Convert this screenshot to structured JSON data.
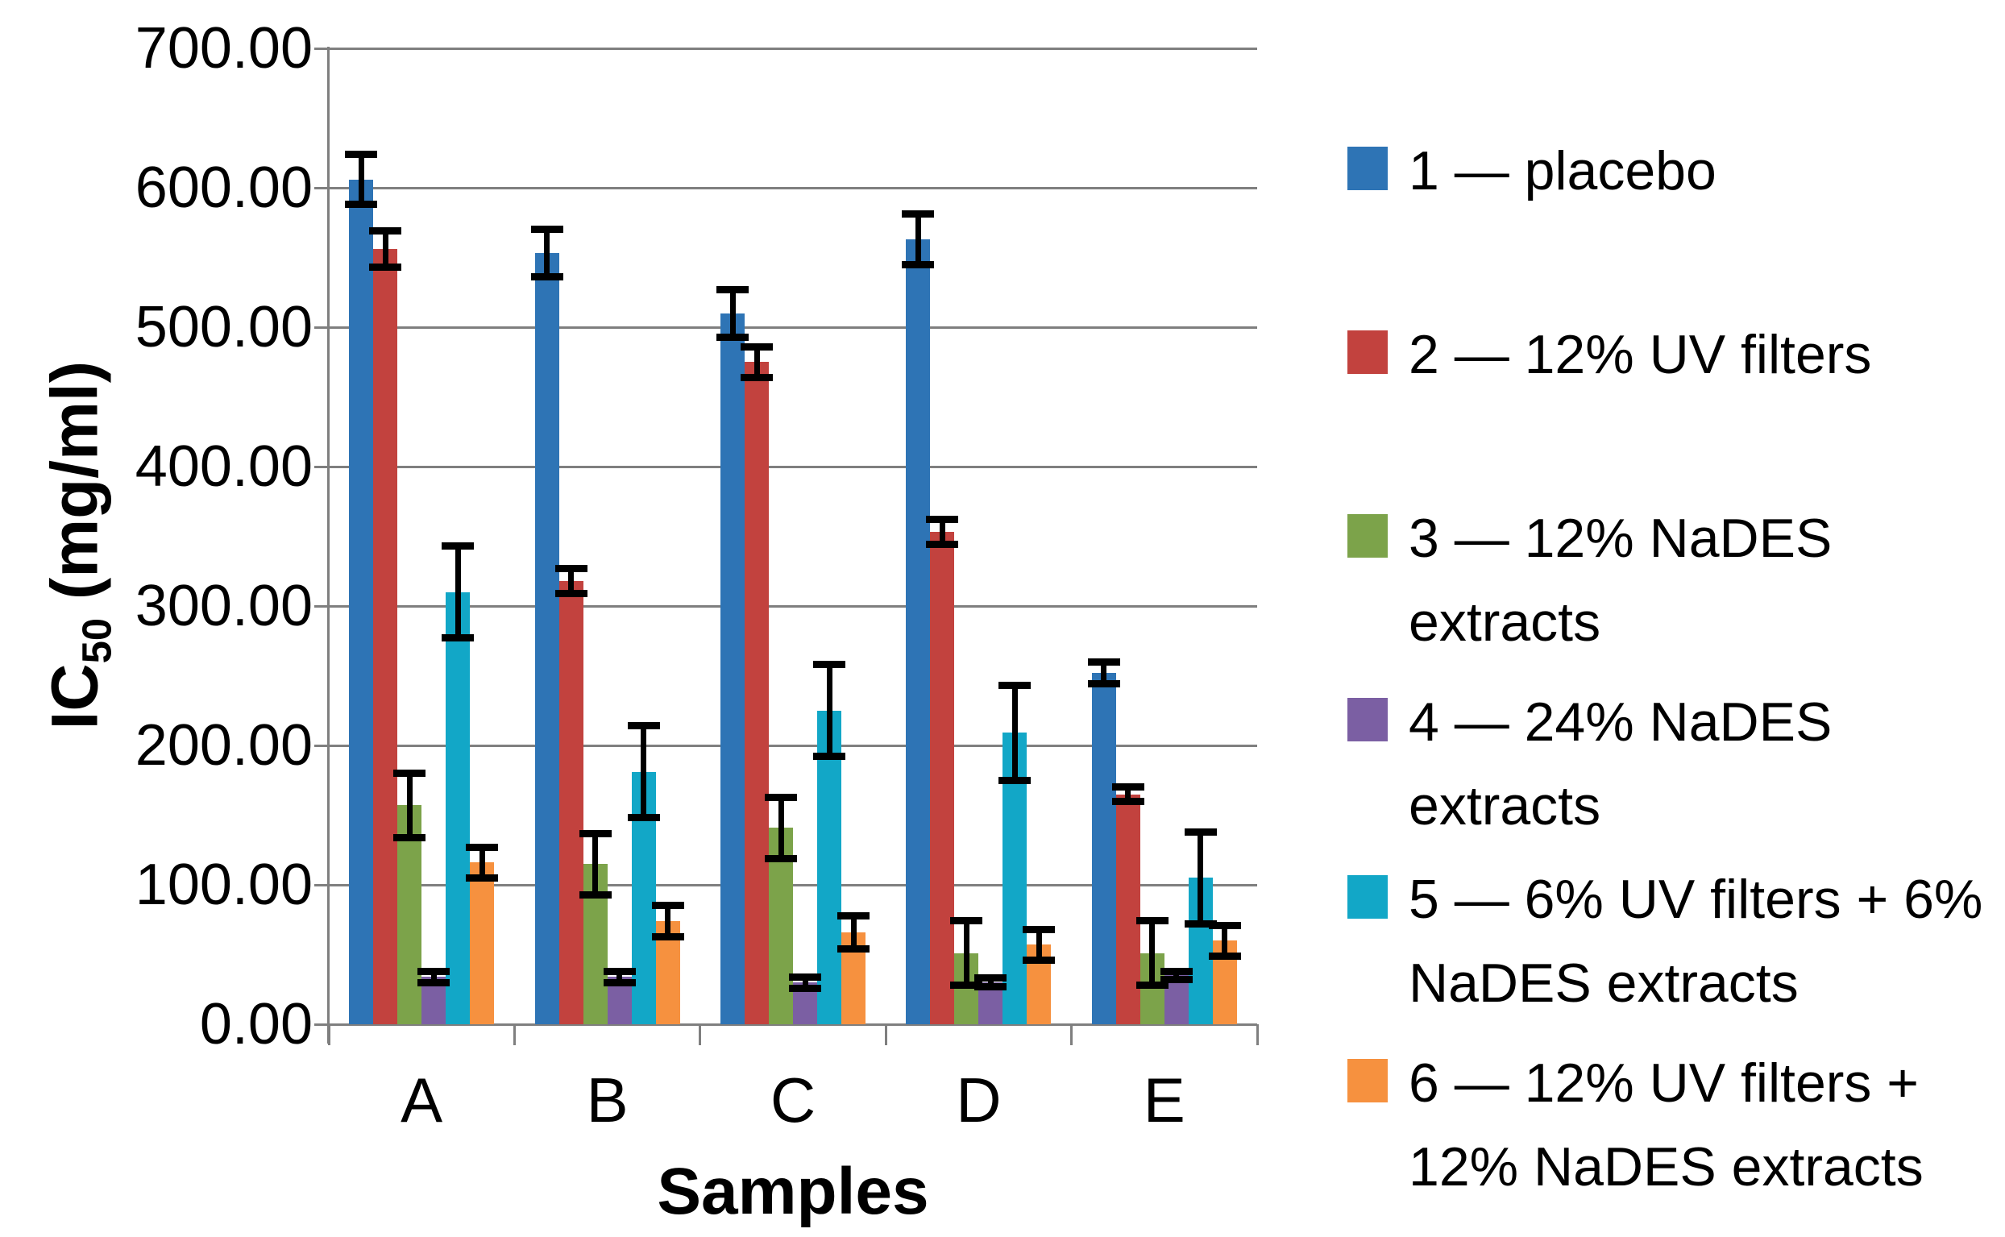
{
  "figure_type": "grouped bar chart with error bars",
  "chart_data": {
    "type": "bar",
    "title": "",
    "xlabel": "Samples",
    "ylabel": "IC50 (mg/ml)",
    "ylabel_parts": {
      "prefix": "IC",
      "subscript": "50",
      "suffix": " (mg/ml)"
    },
    "categories": [
      "A",
      "B",
      "C",
      "D",
      "E"
    ],
    "series": [
      {
        "name": "1 — placebo",
        "color": "#2E74B5",
        "values": [
          606,
          553,
          510,
          563,
          252
        ],
        "errors": [
          18,
          17,
          17,
          18,
          8
        ]
      },
      {
        "name": "2 — 12% UV filters",
        "color": "#C2423E",
        "values": [
          556,
          318,
          475,
          353,
          165
        ],
        "errors": [
          13,
          9,
          11,
          9,
          5
        ]
      },
      {
        "name": "3 — 12% NaDES extracts",
        "color": "#7CA34A",
        "values": [
          157,
          115,
          141,
          51,
          51
        ],
        "errors": [
          23,
          22,
          22,
          23,
          23
        ]
      },
      {
        "name": "4 — 24% NaDES extracts",
        "color": "#7B5FA3",
        "values": [
          34,
          34,
          30,
          30,
          35
        ],
        "errors": [
          4,
          4,
          4,
          3,
          3
        ]
      },
      {
        "name": "5 — 6% UV filters + 6% NaDES extracts",
        "color": "#12A7C7",
        "values": [
          310,
          181,
          225,
          209,
          105
        ],
        "errors": [
          33,
          33,
          33,
          34,
          33
        ]
      },
      {
        "name": "6 — 12% UV filters + 12% NaDES extracts",
        "color": "#F6913F",
        "values": [
          116,
          74,
          66,
          57,
          60
        ],
        "errors": [
          11,
          11,
          12,
          11,
          11
        ]
      }
    ],
    "ylim": [
      0,
      700
    ],
    "ytick_step": 100,
    "yticks": [
      "0.00",
      "100.00",
      "200.00",
      "300.00",
      "400.00",
      "500.00",
      "600.00",
      "700.00"
    ],
    "grid": true,
    "grid_color": "#7f7f7f",
    "error_bar_color": "#000000",
    "legend_position": "right"
  }
}
